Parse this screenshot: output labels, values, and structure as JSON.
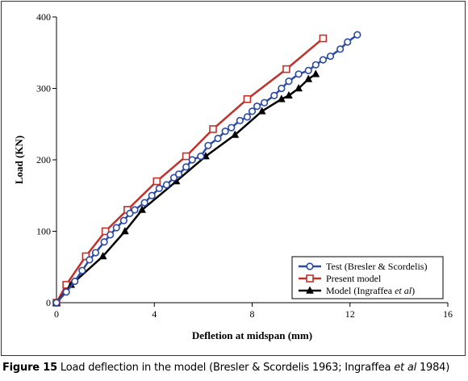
{
  "chart_data": {
    "type": "line",
    "xlabel": "Defletion at midspan (mm)",
    "ylabel": "Load (KN)",
    "xlim": [
      0,
      16
    ],
    "ylim": [
      0,
      400
    ],
    "xticks": [
      0,
      4,
      8,
      12,
      16
    ],
    "yticks": [
      0,
      100,
      200,
      300,
      400
    ],
    "legend_position": "bottom-right",
    "grid": false,
    "series": [
      {
        "name": "Test (Bresler & Scordelis)",
        "color": "#2b4aa3",
        "marker": "circle-open",
        "x": [
          0,
          0.4,
          0.75,
          1.05,
          1.35,
          1.6,
          1.95,
          2.2,
          2.45,
          2.75,
          3.0,
          3.2,
          3.6,
          3.9,
          4.2,
          4.5,
          4.8,
          5.0,
          5.3,
          5.55,
          5.9,
          6.2,
          6.6,
          6.9,
          7.15,
          7.5,
          7.8,
          8.0,
          8.2,
          8.5,
          8.9,
          9.2,
          9.5,
          9.9,
          10.3,
          10.6,
          10.9,
          11.2,
          11.6,
          11.9,
          12.3
        ],
        "y": [
          0,
          15,
          30,
          45,
          60,
          70,
          85,
          95,
          105,
          115,
          125,
          130,
          140,
          150,
          160,
          165,
          175,
          180,
          190,
          200,
          205,
          220,
          230,
          240,
          245,
          255,
          260,
          268,
          275,
          280,
          290,
          300,
          310,
          320,
          325,
          333,
          340,
          345,
          355,
          365,
          375
        ]
      },
      {
        "name": "Present model",
        "color": "#c0312b",
        "marker": "square-open",
        "x": [
          0,
          0.4,
          1.2,
          2.0,
          2.9,
          4.1,
          5.3,
          6.4,
          7.8,
          9.4,
          10.9
        ],
        "y": [
          0,
          25,
          65,
          100,
          130,
          170,
          205,
          243,
          285,
          327,
          370
        ]
      },
      {
        "name": "Model (Ingraffea et al)",
        "color": "#000000",
        "marker": "triangle-filled",
        "x": [
          0,
          0.6,
          1.9,
          2.8,
          3.5,
          4.9,
          6.1,
          7.3,
          8.4,
          9.2,
          9.5,
          9.9,
          10.3,
          10.6
        ],
        "y": [
          0,
          25,
          65,
          100,
          130,
          170,
          205,
          235,
          268,
          285,
          290,
          300,
          313,
          320
        ]
      }
    ]
  },
  "caption": {
    "figure_label": "Figure 15",
    "text_1": "Load deflection in the model (Bresler & Scordelis 1963; Ingraffea ",
    "text_italic": "et al",
    "text_2": " 1984)"
  }
}
